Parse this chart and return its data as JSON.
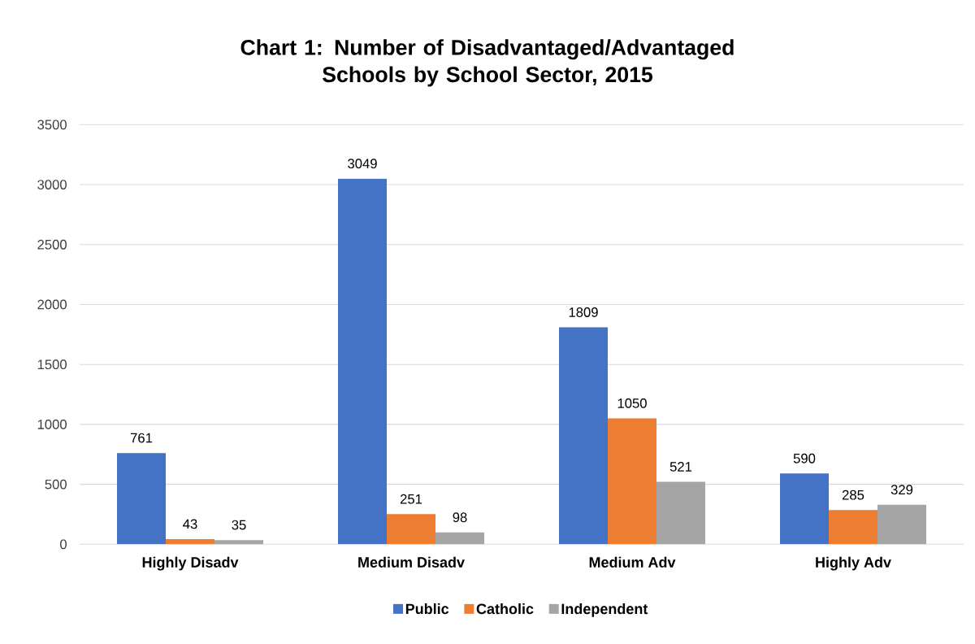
{
  "chart_data": {
    "type": "bar",
    "title": "Chart 1: Number of Disadvantaged/Advantaged Schools by School Sector, 2015",
    "categories": [
      "Highly Disadv",
      "Medium Disadv",
      "Medium Adv",
      "Highly Adv"
    ],
    "series": [
      {
        "name": "Public",
        "color": "#4472c4",
        "values": [
          761,
          3049,
          1809,
          590
        ]
      },
      {
        "name": "Catholic",
        "color": "#ed7d31",
        "values": [
          43,
          251,
          1050,
          285
        ]
      },
      {
        "name": "Independent",
        "color": "#a5a5a5",
        "values": [
          35,
          98,
          521,
          329
        ]
      }
    ],
    "ylim": [
      0,
      3500
    ],
    "yticks": [
      0,
      500,
      1000,
      1500,
      2000,
      2500,
      3000,
      3500
    ],
    "grid": "y",
    "legend": "bottom",
    "data_labels": true
  }
}
